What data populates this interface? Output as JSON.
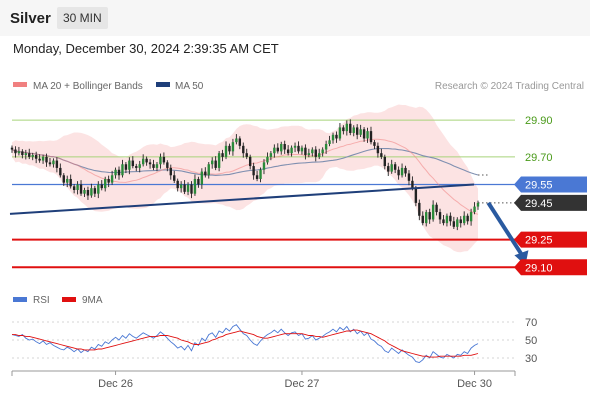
{
  "header": {
    "title": "Silver",
    "timeframe": "30 MIN"
  },
  "timestamp": "Monday, December 30, 2024 2:39:35 AM CET",
  "credit": "Research © 2024 Trading Central",
  "colors": {
    "bollinger_fill": "#fbdede",
    "ma20": "#f08080",
    "ma50": "#1f3f7a",
    "resistance": "#a8d37a",
    "support": "#e01010",
    "pivot": "#4a78d4",
    "current": "#333333",
    "rsi": "#4a78d4",
    "rsi_ma": "#e01010",
    "arrow": "#2a5aa0"
  },
  "chart_data": [
    {
      "type": "line",
      "subtype": "candlestick",
      "legend": [
        {
          "name": "MA 20 + Bollinger Bands",
          "color": "#f08080"
        },
        {
          "name": "MA 50",
          "color": "#1f3f7a"
        }
      ],
      "y_range": [
        29.02,
        30.02
      ],
      "x_ticks": [
        {
          "label": "Dec 26",
          "index": 30
        },
        {
          "label": "Dec 27",
          "index": 84
        },
        {
          "label": "Dec 30",
          "index": 134
        }
      ],
      "levels": [
        {
          "value": 29.9,
          "label": "29.90",
          "role": "resistance"
        },
        {
          "value": 29.7,
          "label": "29.70",
          "role": "resistance"
        },
        {
          "value": 29.55,
          "label": "29.55",
          "role": "pivot"
        },
        {
          "value": 29.45,
          "label": "29.45",
          "role": "current"
        },
        {
          "value": 29.25,
          "label": "29.25",
          "role": "support"
        },
        {
          "value": 29.1,
          "label": "29.10",
          "role": "support"
        }
      ],
      "trendline": {
        "start": [
          0,
          29.39
        ],
        "end": [
          135,
          29.55
        ]
      },
      "projection_arrow": {
        "from": [
          138,
          29.45
        ],
        "to": [
          147,
          29.1
        ]
      },
      "price_path": [
        29.74,
        29.72,
        29.73,
        29.71,
        29.72,
        29.7,
        29.71,
        29.69,
        29.68,
        29.7,
        29.67,
        29.66,
        29.68,
        29.64,
        29.6,
        29.56,
        29.58,
        29.54,
        29.52,
        29.55,
        29.5,
        29.52,
        29.49,
        29.53,
        29.5,
        29.55,
        29.53,
        29.58,
        29.56,
        29.6,
        29.63,
        29.6,
        29.66,
        29.63,
        29.68,
        29.65,
        29.64,
        29.66,
        29.69,
        29.67,
        29.66,
        29.64,
        29.66,
        29.7,
        29.67,
        29.64,
        29.6,
        29.57,
        29.53,
        29.55,
        29.51,
        29.55,
        29.5,
        29.58,
        29.55,
        29.62,
        29.6,
        29.66,
        29.68,
        29.64,
        29.72,
        29.7,
        29.76,
        29.73,
        29.78,
        29.8,
        29.76,
        29.72,
        29.7,
        29.65,
        29.6,
        29.58,
        29.63,
        29.67,
        29.7,
        29.72,
        29.75,
        29.73,
        29.77,
        29.74,
        29.72,
        29.75,
        29.76,
        29.73,
        29.75,
        29.71,
        29.72,
        29.74,
        29.7,
        29.72,
        29.74,
        29.77,
        29.79,
        29.82,
        29.8,
        29.86,
        29.84,
        29.88,
        29.83,
        29.86,
        29.82,
        29.85,
        29.8,
        29.84,
        29.78,
        29.76,
        29.72,
        29.7,
        29.65,
        29.62,
        29.66,
        29.63,
        29.6,
        29.64,
        29.61,
        29.57,
        29.53,
        29.45,
        29.38,
        29.34,
        29.4,
        29.36,
        29.44,
        29.4,
        29.36,
        29.34,
        29.38,
        29.35,
        29.32,
        29.36,
        29.34,
        29.38,
        29.35,
        29.4,
        29.43,
        29.45
      ]
    },
    {
      "type": "line",
      "subtype": "rsi",
      "legend": [
        {
          "name": "RSI",
          "color": "#4a78d4"
        },
        {
          "name": "9MA",
          "color": "#e01010"
        }
      ],
      "y_range": [
        20,
        80
      ],
      "y_ticks": [
        70,
        50,
        30
      ],
      "rsi_values": [
        56,
        55,
        54,
        56,
        52,
        50,
        51,
        48,
        46,
        49,
        45,
        47,
        44,
        42,
        40,
        39,
        42,
        40,
        37,
        40,
        36,
        39,
        37,
        42,
        40,
        45,
        43,
        48,
        46,
        50,
        53,
        50,
        55,
        52,
        57,
        54,
        52,
        55,
        58,
        56,
        54,
        52,
        55,
        59,
        56,
        52,
        48,
        45,
        41,
        43,
        39,
        44,
        38,
        47,
        44,
        52,
        49,
        56,
        58,
        53,
        60,
        58,
        63,
        60,
        65,
        67,
        62,
        57,
        55,
        50,
        46,
        44,
        49,
        53,
        56,
        58,
        61,
        58,
        62,
        58,
        55,
        58,
        59,
        55,
        57,
        51,
        52,
        55,
        50,
        52,
        54,
        57,
        59,
        62,
        59,
        64,
        61,
        65,
        59,
        62,
        57,
        60,
        55,
        58,
        51,
        49,
        45,
        43,
        38,
        36,
        41,
        38,
        35,
        39,
        36,
        33,
        31,
        26,
        25,
        28,
        33,
        30,
        37,
        34,
        31,
        30,
        34,
        32,
        30,
        34,
        33,
        37,
        35,
        41,
        44,
        46
      ],
      "ma_values": [
        56,
        56,
        55,
        55,
        54,
        54,
        53,
        52,
        51,
        50,
        49,
        48,
        47,
        46,
        45,
        44,
        43,
        42,
        41,
        40,
        40,
        39,
        39,
        39,
        39,
        40,
        40,
        41,
        42,
        43,
        44,
        45,
        46,
        47,
        48,
        49,
        50,
        51,
        52,
        53,
        54,
        54,
        54,
        55,
        55,
        55,
        54,
        53,
        52,
        50,
        49,
        48,
        46,
        45,
        45,
        46,
        47,
        48,
        50,
        51,
        53,
        54,
        56,
        57,
        58,
        59,
        60,
        59,
        58,
        57,
        56,
        54,
        53,
        52,
        52,
        53,
        54,
        55,
        56,
        57,
        57,
        57,
        57,
        57,
        57,
        56,
        55,
        55,
        54,
        54,
        53,
        54,
        55,
        56,
        57,
        58,
        59,
        60,
        60,
        61,
        61,
        60,
        59,
        58,
        57,
        55,
        53,
        51,
        49,
        46,
        44,
        42,
        40,
        38,
        37,
        36,
        35,
        34,
        33,
        32,
        32,
        31,
        31,
        31,
        32,
        32,
        32,
        32,
        32,
        32,
        32,
        33,
        33,
        33,
        34,
        35
      ]
    }
  ]
}
